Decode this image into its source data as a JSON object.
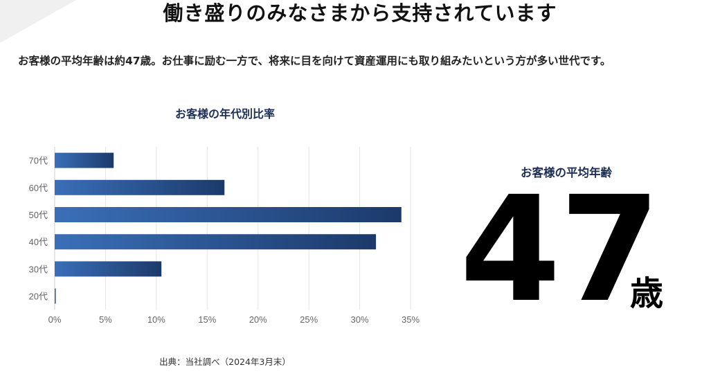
{
  "headline": "働き盛りのみなさまから支持されています",
  "lead": "お客様の平均年齢は約47歳。お仕事に励む一方で、将来に目を向けて資産運用にも取り組みたいという方が多い世代です。",
  "source_note": "出典：当社調べ（2024年3月末）",
  "average": {
    "label": "お客様の平均年齢",
    "value": "47",
    "unit": "歳"
  },
  "colors": {
    "bar_start": "#3a6fb8",
    "bar_end": "#1c3a6b",
    "title": "#1d2f57",
    "grid": "#e3e3e3"
  },
  "chart_data": {
    "type": "bar",
    "orientation": "horizontal",
    "title": "お客様の年代別比率",
    "categories": [
      "70代",
      "60代",
      "50代",
      "40代",
      "30代",
      "20代"
    ],
    "values": [
      5.8,
      16.7,
      34.1,
      31.6,
      10.5,
      0.1
    ],
    "xlabel": "",
    "ylabel": "",
    "xlim": [
      0,
      35
    ],
    "xticks": [
      "0%",
      "5%",
      "10%",
      "15%",
      "20%",
      "25%",
      "30%",
      "35%"
    ],
    "grid": true,
    "legend": "none"
  }
}
